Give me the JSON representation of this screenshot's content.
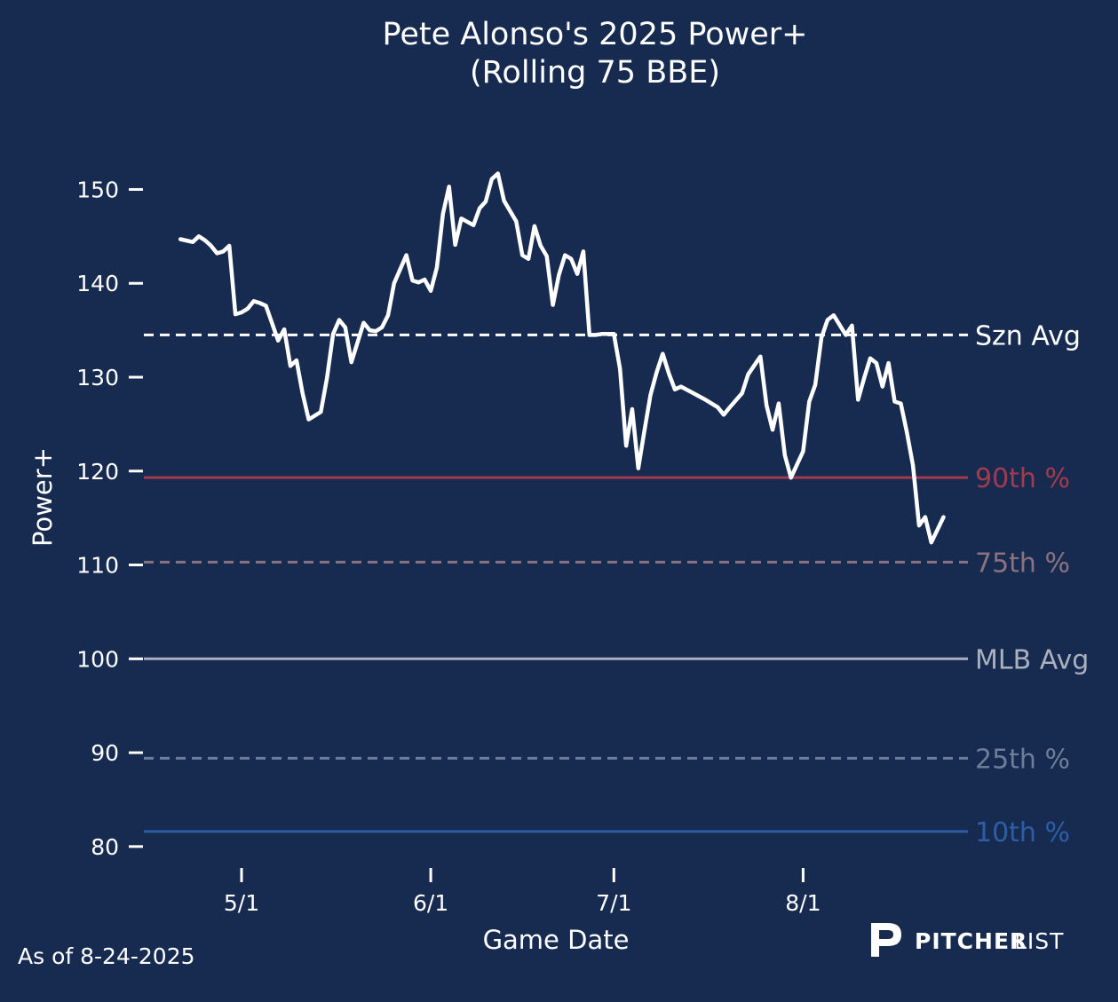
{
  "title_line1": "Pete Alonso's 2025 Power+",
  "title_line2": "(Rolling 75 BBE)",
  "footnote": "As of 8-24-2025",
  "brand": {
    "bold": "PITCHER",
    "thin": "LIST",
    "logo_icon": "pitcherlist-p-icon"
  },
  "colors": {
    "background": "#172b50",
    "series": "#ffffff",
    "szn_avg": "#ffffff",
    "p90": "#a33a4e",
    "p75": "#8a7280",
    "mlb_avg": "#aab0be",
    "p25": "#6d7d9a",
    "p10": "#2d5ea5"
  },
  "chart_data": {
    "type": "line",
    "title": "Pete Alonso's 2025 Power+\n(Rolling 75 BBE)",
    "xlabel": "Game Date",
    "ylabel": "Power+",
    "xlim": [
      "2025-04-15",
      "2025-08-28"
    ],
    "ylim": [
      78,
      156
    ],
    "x_ticks": [
      {
        "date": "2025-05-01",
        "label": "5/1"
      },
      {
        "date": "2025-06-01",
        "label": "6/1"
      },
      {
        "date": "2025-07-01",
        "label": "7/1"
      },
      {
        "date": "2025-08-01",
        "label": "8/1"
      }
    ],
    "y_ticks": [
      80,
      90,
      100,
      110,
      120,
      130,
      140,
      150
    ],
    "grid": false,
    "reference_lines": [
      {
        "label": "Szn Avg",
        "value": 134.5,
        "style": "dashed",
        "color_key": "szn_avg"
      },
      {
        "label": "90th %",
        "value": 119.3,
        "style": "solid",
        "color_key": "p90"
      },
      {
        "label": "75th %",
        "value": 110.3,
        "style": "dashed",
        "color_key": "p75"
      },
      {
        "label": "MLB Avg",
        "value": 100,
        "style": "solid",
        "color_key": "mlb_avg"
      },
      {
        "label": "25th %",
        "value": 89.4,
        "style": "dashed",
        "color_key": "p25"
      },
      {
        "label": "10th %",
        "value": 81.6,
        "style": "solid",
        "color_key": "p10"
      }
    ],
    "series": [
      {
        "values": [
          [
            "2025-04-21",
            144.7
          ],
          [
            "2025-04-23",
            144.4
          ],
          [
            "2025-04-24",
            145.0
          ],
          [
            "2025-04-25",
            144.6
          ],
          [
            "2025-04-26",
            144.0
          ],
          [
            "2025-04-27",
            143.2
          ],
          [
            "2025-04-28",
            143.4
          ],
          [
            "2025-04-29",
            144.0
          ],
          [
            "2025-04-30",
            136.7
          ],
          [
            "2025-05-01",
            136.9
          ],
          [
            "2025-05-02",
            137.3
          ],
          [
            "2025-05-03",
            138.1
          ],
          [
            "2025-05-04",
            137.9
          ],
          [
            "2025-05-05",
            137.6
          ],
          [
            "2025-05-07",
            133.9
          ],
          [
            "2025-05-08",
            135.1
          ],
          [
            "2025-05-09",
            131.2
          ],
          [
            "2025-05-10",
            131.8
          ],
          [
            "2025-05-11",
            128.3
          ],
          [
            "2025-05-12",
            125.5
          ],
          [
            "2025-05-14",
            126.3
          ],
          [
            "2025-05-15",
            129.9
          ],
          [
            "2025-05-16",
            134.6
          ],
          [
            "2025-05-17",
            136.1
          ],
          [
            "2025-05-18",
            135.3
          ],
          [
            "2025-05-19",
            131.6
          ],
          [
            "2025-05-20",
            133.7
          ],
          [
            "2025-05-21",
            135.8
          ],
          [
            "2025-05-22",
            135.0
          ],
          [
            "2025-05-23",
            134.9
          ],
          [
            "2025-05-24",
            135.3
          ],
          [
            "2025-05-25",
            136.6
          ],
          [
            "2025-05-26",
            140.0
          ],
          [
            "2025-05-28",
            143.0
          ],
          [
            "2025-05-29",
            140.3
          ],
          [
            "2025-05-30",
            140.1
          ],
          [
            "2025-05-31",
            140.4
          ],
          [
            "2025-06-01",
            139.2
          ],
          [
            "2025-06-02",
            141.7
          ],
          [
            "2025-06-03",
            147.4
          ],
          [
            "2025-06-04",
            150.3
          ],
          [
            "2025-06-05",
            144.1
          ],
          [
            "2025-06-06",
            146.9
          ],
          [
            "2025-06-08",
            146.2
          ],
          [
            "2025-06-09",
            148.0
          ],
          [
            "2025-06-10",
            148.7
          ],
          [
            "2025-06-11",
            151.1
          ],
          [
            "2025-06-12",
            151.7
          ],
          [
            "2025-06-13",
            148.8
          ],
          [
            "2025-06-15",
            146.6
          ],
          [
            "2025-06-16",
            143.0
          ],
          [
            "2025-06-17",
            142.6
          ],
          [
            "2025-06-18",
            146.1
          ],
          [
            "2025-06-19",
            144.0
          ],
          [
            "2025-06-20",
            142.9
          ],
          [
            "2025-06-21",
            137.7
          ],
          [
            "2025-06-22",
            140.9
          ],
          [
            "2025-06-23",
            143.0
          ],
          [
            "2025-06-24",
            142.6
          ],
          [
            "2025-06-25",
            141.0
          ],
          [
            "2025-06-26",
            143.4
          ],
          [
            "2025-06-27",
            134.5
          ],
          [
            "2025-06-28",
            134.5
          ],
          [
            "2025-06-29",
            134.6
          ],
          [
            "2025-07-01",
            134.6
          ],
          [
            "2025-07-02",
            130.9
          ],
          [
            "2025-07-03",
            122.7
          ],
          [
            "2025-07-04",
            126.6
          ],
          [
            "2025-07-05",
            120.3
          ],
          [
            "2025-07-06",
            124.3
          ],
          [
            "2025-07-07",
            128.1
          ],
          [
            "2025-07-08",
            130.5
          ],
          [
            "2025-07-09",
            132.5
          ],
          [
            "2025-07-10",
            130.4
          ],
          [
            "2025-07-11",
            128.7
          ],
          [
            "2025-07-12",
            129.0
          ],
          [
            "2025-07-14",
            128.3
          ],
          [
            "2025-07-16",
            127.6
          ],
          [
            "2025-07-18",
            126.8
          ],
          [
            "2025-07-19",
            126.0
          ],
          [
            "2025-07-20",
            126.8
          ],
          [
            "2025-07-22",
            128.3
          ],
          [
            "2025-07-23",
            130.3
          ],
          [
            "2025-07-25",
            132.2
          ],
          [
            "2025-07-26",
            127.0
          ],
          [
            "2025-07-27",
            124.4
          ],
          [
            "2025-07-28",
            127.2
          ],
          [
            "2025-07-29",
            121.7
          ],
          [
            "2025-07-30",
            119.3
          ],
          [
            "2025-08-01",
            122.1
          ],
          [
            "2025-08-02",
            127.4
          ],
          [
            "2025-08-03",
            129.2
          ],
          [
            "2025-08-04",
            134.2
          ],
          [
            "2025-08-05",
            136.1
          ],
          [
            "2025-08-06",
            136.6
          ],
          [
            "2025-08-08",
            134.5
          ],
          [
            "2025-08-09",
            135.5
          ],
          [
            "2025-08-10",
            127.6
          ],
          [
            "2025-08-11",
            129.9
          ],
          [
            "2025-08-12",
            132.0
          ],
          [
            "2025-08-13",
            131.5
          ],
          [
            "2025-08-14",
            129.0
          ],
          [
            "2025-08-15",
            131.5
          ],
          [
            "2025-08-16",
            127.4
          ],
          [
            "2025-08-17",
            127.2
          ],
          [
            "2025-08-18",
            124.1
          ],
          [
            "2025-08-19",
            120.6
          ],
          [
            "2025-08-20",
            114.2
          ],
          [
            "2025-08-21",
            115.1
          ],
          [
            "2025-08-22",
            112.4
          ],
          [
            "2025-08-24",
            115.1
          ]
        ]
      }
    ]
  }
}
